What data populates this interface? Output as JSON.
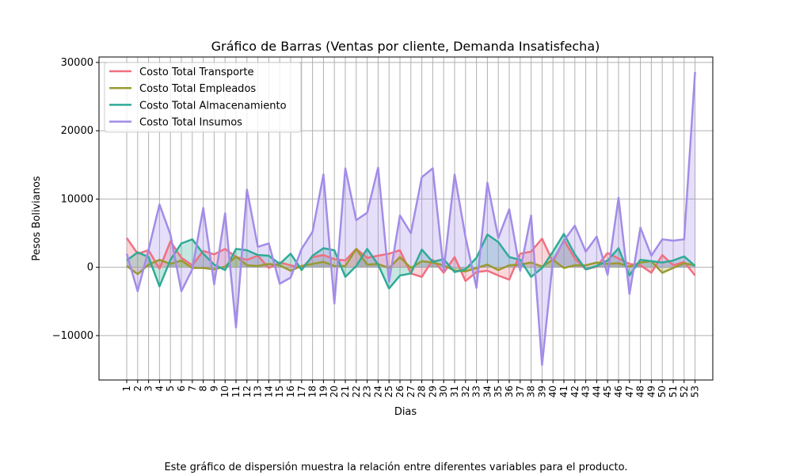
{
  "chart_data": {
    "type": "line",
    "title": "Gráfico de Barras (Ventas por cliente, Demanda Insatisfecha)",
    "xlabel": "Dias",
    "ylabel": "Pesos Bolivianos",
    "x": [
      1,
      2,
      3,
      4,
      5,
      6,
      7,
      8,
      9,
      10,
      11,
      12,
      13,
      14,
      15,
      16,
      17,
      18,
      19,
      20,
      21,
      22,
      23,
      24,
      25,
      26,
      27,
      28,
      29,
      30,
      31,
      32,
      33,
      34,
      35,
      36,
      37,
      38,
      39,
      40,
      41,
      42,
      43,
      44,
      45,
      46,
      47,
      48,
      49,
      50,
      51,
      52,
      53
    ],
    "ylim": [
      -16500,
      30800
    ],
    "yticks": [
      -10000,
      0,
      10000,
      20000,
      30000
    ],
    "ytick_labels": [
      "−10000",
      "0",
      "10000",
      "20000",
      "30000"
    ],
    "grid": true,
    "legend_position": "upper-left",
    "fill_to_zero": true,
    "series": [
      {
        "name": "Costo Total Transporte",
        "color": "#f07080",
        "values": [
          4300,
          2000,
          2500,
          -200,
          3800,
          1400,
          300,
          2400,
          1900,
          2700,
          1500,
          1100,
          1700,
          -100,
          700,
          300,
          -100,
          1500,
          1800,
          1200,
          1000,
          2700,
          1400,
          1700,
          2000,
          2500,
          -900,
          -1400,
          1100,
          -800,
          1500,
          -2000,
          -700,
          -500,
          -1200,
          -1800,
          2000,
          2300,
          4200,
          800,
          4000,
          1300,
          -300,
          100,
          2100,
          1300,
          500,
          300,
          -800,
          1800,
          300,
          800,
          -1200
        ]
      },
      {
        "name": "Costo Total Empleados",
        "color": "#9a9a30",
        "values": [
          200,
          -1000,
          400,
          1100,
          500,
          1000,
          -100,
          -100,
          -300,
          100,
          1600,
          300,
          200,
          500,
          300,
          -500,
          200,
          500,
          800,
          200,
          200,
          2700,
          400,
          500,
          -100,
          1500,
          -100,
          900,
          700,
          300,
          -500,
          -600,
          -100,
          400,
          -400,
          300,
          400,
          700,
          100,
          1100,
          -100,
          300,
          300,
          700,
          500,
          600,
          100,
          700,
          900,
          -800,
          -100,
          600,
          300
        ]
      },
      {
        "name": "Costo Total Almacenamiento",
        "color": "#30aa98",
        "values": [
          1000,
          2200,
          1500,
          -2800,
          1100,
          3500,
          4100,
          2000,
          400,
          -400,
          2700,
          2500,
          1800,
          1700,
          500,
          2000,
          -400,
          1700,
          2800,
          2500,
          -1400,
          200,
          2700,
          400,
          -3100,
          -1200,
          -900,
          2600,
          800,
          1200,
          -700,
          -300,
          1400,
          4800,
          3700,
          1500,
          1100,
          -1400,
          -100,
          2300,
          4900,
          1900,
          -300,
          200,
          1000,
          2800,
          -1200,
          1100,
          900,
          700,
          1000,
          1600,
          200
        ]
      },
      {
        "name": "Costo Total Insumos",
        "color": "#a38ce8",
        "values": [
          2000,
          -3500,
          2600,
          9200,
          4800,
          -3500,
          -300,
          8700,
          -2500,
          7900,
          -8800,
          11400,
          3000,
          3500,
          -2400,
          -1500,
          2700,
          5200,
          13600,
          -5300,
          14500,
          6900,
          8000,
          14600,
          -2100,
          7600,
          5000,
          13200,
          14500,
          -500,
          13600,
          4400,
          -3000,
          12400,
          4300,
          8500,
          -500,
          7600,
          -14300,
          1100,
          3900,
          6100,
          2300,
          4500,
          -1100,
          10200,
          -3900,
          5800,
          1700,
          4100,
          3900,
          4100,
          28600
        ]
      }
    ]
  },
  "caption": "Este gráfico de dispersión muestra la relación entre diferentes variables para el producto."
}
